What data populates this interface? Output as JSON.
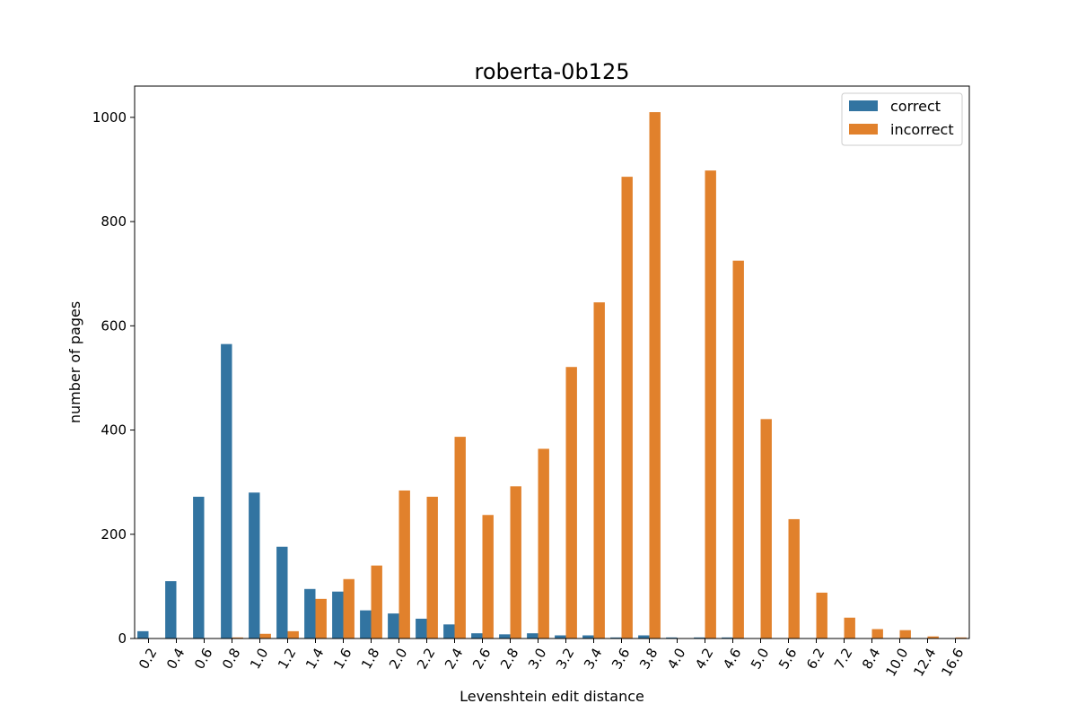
{
  "chart_data": {
    "type": "bar",
    "title": "roberta-0b125",
    "xlabel": "Levenshtein edit distance",
    "ylabel": "number of pages",
    "ylim": [
      0,
      1060
    ],
    "yticks": [
      0,
      200,
      400,
      600,
      800,
      1000
    ],
    "grid": false,
    "legend_position": "top-right",
    "categories": [
      "0.2",
      "0.4",
      "0.6",
      "0.8",
      "1.0",
      "1.2",
      "1.4",
      "1.6",
      "1.8",
      "2.0",
      "2.2",
      "2.4",
      "2.6",
      "2.8",
      "3.0",
      "3.2",
      "3.4",
      "3.6",
      "3.8",
      "4.0",
      "4.2",
      "4.6",
      "5.0",
      "5.6",
      "6.2",
      "7.2",
      "8.4",
      "10.0",
      "12.4",
      "16.6"
    ],
    "series": [
      {
        "name": "correct",
        "color": "#3274a1",
        "values": [
          14,
          110,
          272,
          565,
          280,
          176,
          95,
          90,
          54,
          48,
          38,
          27,
          10,
          8,
          10,
          6,
          6,
          2,
          6,
          2,
          2,
          2,
          0,
          0,
          0,
          0,
          0,
          0,
          0,
          0
        ]
      },
      {
        "name": "incorrect",
        "color": "#e1812c",
        "values": [
          0,
          0,
          0,
          2,
          9,
          14,
          76,
          114,
          140,
          284,
          272,
          387,
          237,
          292,
          364,
          521,
          645,
          886,
          1010,
          0,
          898,
          725,
          421,
          229,
          88,
          40,
          18,
          16,
          4,
          2
        ]
      }
    ]
  }
}
